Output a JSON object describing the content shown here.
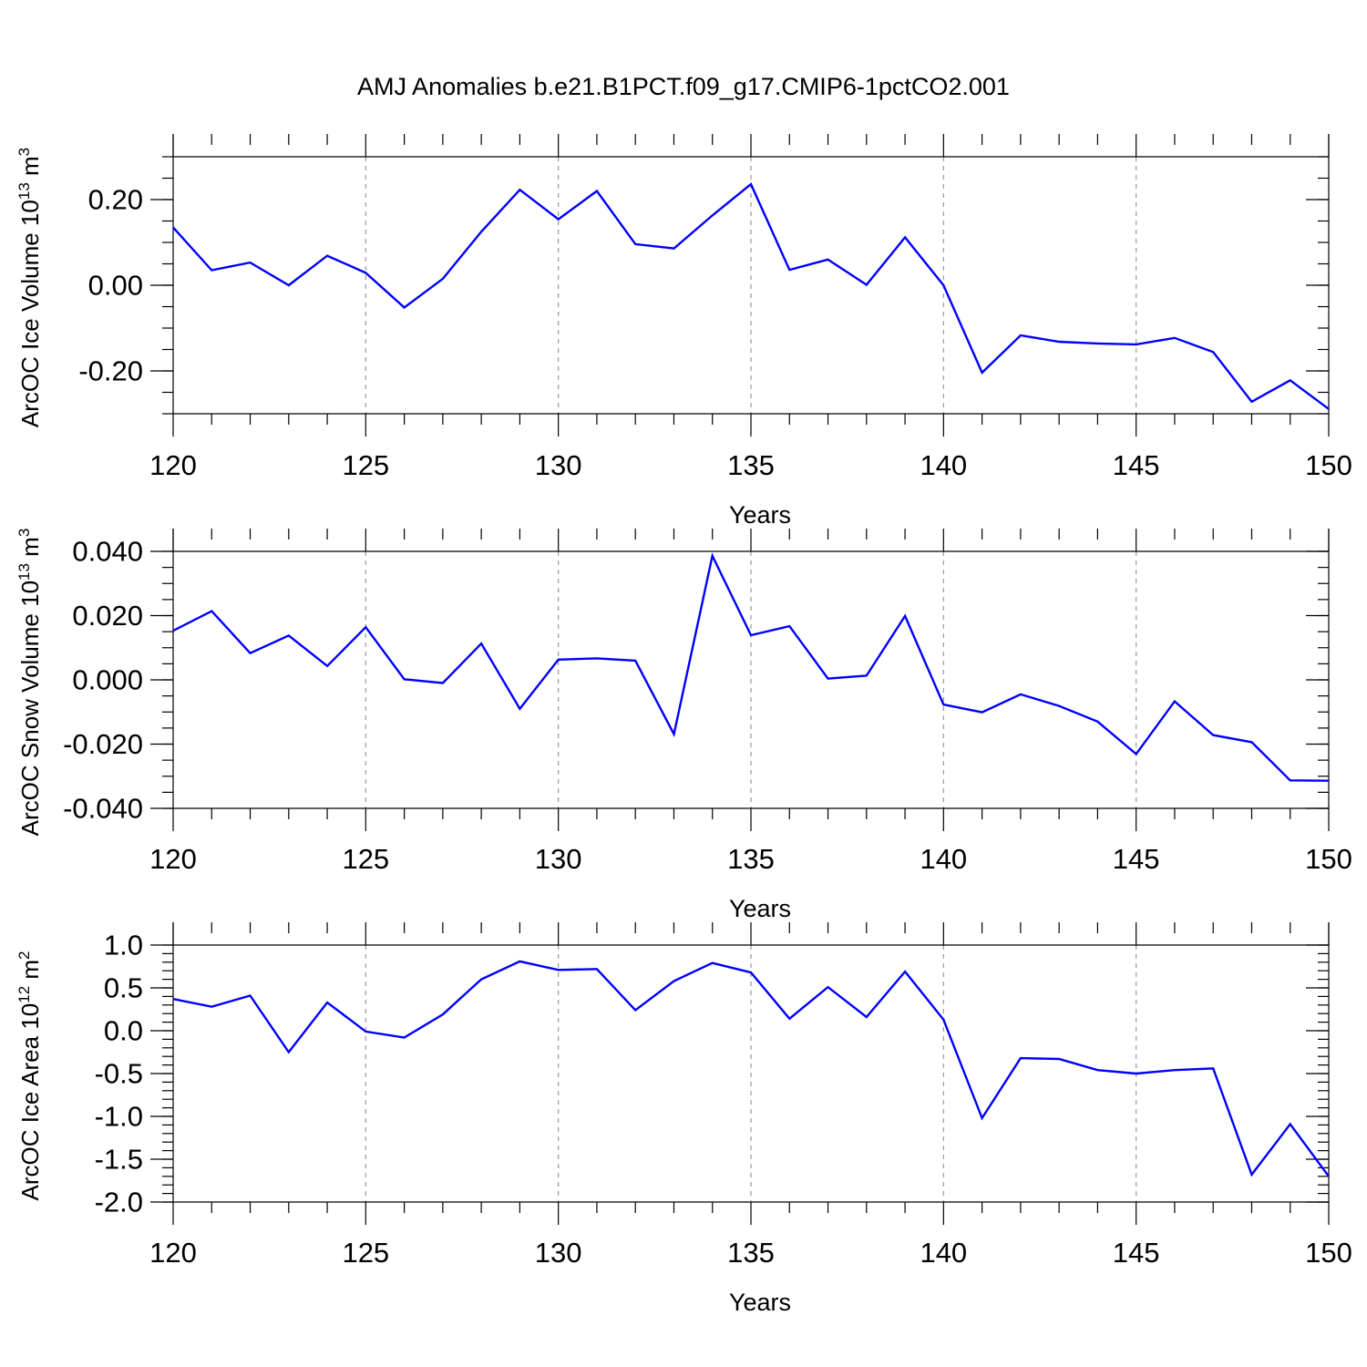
{
  "title": "AMJ Anomalies b.e21.B1PCT.f09_g17.CMIP6-1pctCO2.001",
  "colors": {
    "series": "#0000ff",
    "axis": "#000000",
    "grid": "#999999"
  },
  "chart_data": [
    {
      "type": "line",
      "ylabel": "ArcOC Ice Volume 10",
      "ylabel_sup": "13",
      "ylabel_unit_base": " m",
      "ylabel_unit_sup": "3",
      "xlabel": "Years",
      "xlim": [
        120,
        150
      ],
      "ylim": [
        -0.3,
        0.3
      ],
      "yticks": [
        -0.2,
        0.0,
        0.2
      ],
      "yticklabels": [
        "-0.20",
        "0.00",
        "0.20"
      ],
      "yminor_step": 0.05,
      "xticks": [
        120,
        125,
        130,
        135,
        140,
        145,
        150
      ],
      "xticklabels": [
        "120",
        "125",
        "130",
        "135",
        "140",
        "145",
        "150"
      ],
      "x": [
        120,
        121,
        122,
        123,
        124,
        125,
        126,
        127,
        128,
        129,
        130,
        131,
        132,
        133,
        134,
        135,
        136,
        137,
        138,
        139,
        140,
        141,
        142,
        143,
        144,
        145,
        146,
        147,
        148,
        149,
        150
      ],
      "values": [
        0.135,
        0.035,
        0.053,
        0.0,
        0.069,
        0.029,
        -0.052,
        0.015,
        0.125,
        0.223,
        0.154,
        0.22,
        0.096,
        0.086,
        0.163,
        0.236,
        0.036,
        0.06,
        0.001,
        0.112,
        0.0,
        -0.204,
        -0.117,
        -0.132,
        -0.136,
        -0.138,
        -0.123,
        -0.156,
        -0.272,
        -0.222,
        -0.289
      ]
    },
    {
      "type": "line",
      "ylabel": "ArcOC Snow Volume 10",
      "ylabel_sup": "13",
      "ylabel_unit_base": " m",
      "ylabel_unit_sup": "3",
      "xlabel": "Years",
      "xlim": [
        120,
        150
      ],
      "ylim": [
        -0.04,
        0.04
      ],
      "yticks": [
        -0.04,
        -0.02,
        0.0,
        0.02,
        0.04
      ],
      "yticklabels": [
        "-0.040",
        "-0.020",
        "0.000",
        "0.020",
        "0.040"
      ],
      "yminor_step": 0.005,
      "xticks": [
        120,
        125,
        130,
        135,
        140,
        145,
        150
      ],
      "xticklabels": [
        "120",
        "125",
        "130",
        "135",
        "140",
        "145",
        "150"
      ],
      "x": [
        120,
        121,
        122,
        123,
        124,
        125,
        126,
        127,
        128,
        129,
        130,
        131,
        132,
        133,
        134,
        135,
        136,
        137,
        138,
        139,
        140,
        141,
        142,
        143,
        144,
        145,
        146,
        147,
        148,
        149,
        150
      ],
      "values": [
        0.0153,
        0.0214,
        0.0083,
        0.0138,
        0.0043,
        0.0164,
        0.0002,
        -0.001,
        0.0113,
        -0.009,
        0.0063,
        0.0067,
        0.006,
        -0.0169,
        0.0386,
        0.0139,
        0.0167,
        0.0004,
        0.0013,
        0.0199,
        -0.0077,
        -0.0101,
        -0.0045,
        -0.0081,
        -0.013,
        -0.0231,
        -0.0067,
        -0.0172,
        -0.0194,
        -0.0313,
        -0.0314
      ]
    },
    {
      "type": "line",
      "ylabel": "ArcOC Ice Area 10",
      "ylabel_sup": "12",
      "ylabel_unit_base": " m",
      "ylabel_unit_sup": "2",
      "xlabel": "Years",
      "xlim": [
        120,
        150
      ],
      "ylim": [
        -2.0,
        1.0
      ],
      "yticks": [
        -2.0,
        -1.5,
        -1.0,
        -0.5,
        0.0,
        0.5,
        1.0
      ],
      "yticklabels": [
        "-2.0",
        "-1.5",
        "-1.0",
        "-0.5",
        "0.0",
        "0.5",
        "1.0"
      ],
      "yminor_step": 0.1,
      "xticks": [
        120,
        125,
        130,
        135,
        140,
        145,
        150
      ],
      "xticklabels": [
        "120",
        "125",
        "130",
        "135",
        "140",
        "145",
        "150"
      ],
      "x": [
        120,
        121,
        122,
        123,
        124,
        125,
        126,
        127,
        128,
        129,
        130,
        131,
        132,
        133,
        134,
        135,
        136,
        137,
        138,
        139,
        140,
        141,
        142,
        143,
        144,
        145,
        146,
        147,
        148,
        149,
        150
      ],
      "values": [
        0.37,
        0.28,
        0.41,
        -0.25,
        0.33,
        -0.01,
        -0.08,
        0.19,
        0.6,
        0.81,
        0.71,
        0.72,
        0.24,
        0.58,
        0.79,
        0.68,
        0.14,
        0.51,
        0.16,
        0.69,
        0.13,
        -1.02,
        -0.32,
        -0.33,
        -0.46,
        -0.5,
        -0.46,
        -0.44,
        -1.68,
        -1.09,
        -1.7
      ]
    }
  ]
}
